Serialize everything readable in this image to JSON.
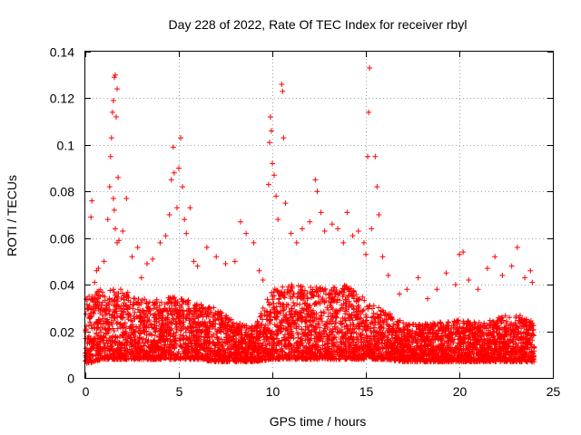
{
  "chart_data": {
    "type": "scatter",
    "title": "Day 228 of 2022, Rate Of TEC Index for receiver rbyl",
    "xlabel": "GPS time / hours",
    "ylabel": "ROTI / TECUs",
    "xlim": [
      0,
      25
    ],
    "ylim": [
      0,
      0.14
    ],
    "xticks": [
      0,
      5,
      10,
      15,
      20,
      25
    ],
    "yticks": [
      0,
      0.02,
      0.04,
      0.06,
      0.08,
      0.1,
      0.12,
      0.14
    ],
    "grid": true,
    "marker": "+",
    "series": [
      {
        "color": "#ff0000",
        "points": [
          [
            0.1,
            0.012
          ],
          [
            0.2,
            0.035
          ],
          [
            0.3,
            0.069
          ],
          [
            0.35,
            0.076
          ],
          [
            0.5,
            0.041
          ],
          [
            0.6,
            0.046
          ],
          [
            0.7,
            0.047
          ],
          [
            0.8,
            0.035
          ],
          [
            1.0,
            0.05
          ],
          [
            1.2,
            0.068
          ],
          [
            1.3,
            0.082
          ],
          [
            1.35,
            0.095
          ],
          [
            1.4,
            0.103
          ],
          [
            1.45,
            0.114
          ],
          [
            1.5,
            0.119
          ],
          [
            1.55,
            0.129
          ],
          [
            1.6,
            0.13
          ],
          [
            1.65,
            0.112
          ],
          [
            1.7,
            0.124
          ],
          [
            1.75,
            0.086
          ],
          [
            1.5,
            0.077
          ],
          [
            1.55,
            0.072
          ],
          [
            1.6,
            0.064
          ],
          [
            1.7,
            0.058
          ],
          [
            1.8,
            0.059
          ],
          [
            2.0,
            0.063
          ],
          [
            2.2,
            0.077
          ],
          [
            2.5,
            0.052
          ],
          [
            2.8,
            0.056
          ],
          [
            3.0,
            0.043
          ],
          [
            3.3,
            0.049
          ],
          [
            3.6,
            0.051
          ],
          [
            4.0,
            0.058
          ],
          [
            4.3,
            0.061
          ],
          [
            4.5,
            0.07
          ],
          [
            4.6,
            0.085
          ],
          [
            4.7,
            0.099
          ],
          [
            4.75,
            0.088
          ],
          [
            4.9,
            0.073
          ],
          [
            5.0,
            0.09
          ],
          [
            5.1,
            0.103
          ],
          [
            5.2,
            0.082
          ],
          [
            5.3,
            0.068
          ],
          [
            5.4,
            0.062
          ],
          [
            5.6,
            0.073
          ],
          [
            5.8,
            0.05
          ],
          [
            6.0,
            0.048
          ],
          [
            6.5,
            0.056
          ],
          [
            7.0,
            0.052
          ],
          [
            7.5,
            0.049
          ],
          [
            8.0,
            0.05
          ],
          [
            8.3,
            0.067
          ],
          [
            8.6,
            0.062
          ],
          [
            9.0,
            0.058
          ],
          [
            9.3,
            0.046
          ],
          [
            9.5,
            0.042
          ],
          [
            9.8,
            0.083
          ],
          [
            9.85,
            0.101
          ],
          [
            9.9,
            0.112
          ],
          [
            9.95,
            0.106
          ],
          [
            10.0,
            0.092
          ],
          [
            10.1,
            0.087
          ],
          [
            10.2,
            0.078
          ],
          [
            10.3,
            0.068
          ],
          [
            10.5,
            0.126
          ],
          [
            10.55,
            0.123
          ],
          [
            10.6,
            0.103
          ],
          [
            10.7,
            0.075
          ],
          [
            11.0,
            0.062
          ],
          [
            11.3,
            0.058
          ],
          [
            11.6,
            0.064
          ],
          [
            12.0,
            0.067
          ],
          [
            12.3,
            0.085
          ],
          [
            12.4,
            0.08
          ],
          [
            12.6,
            0.071
          ],
          [
            12.8,
            0.063
          ],
          [
            13.2,
            0.066
          ],
          [
            13.5,
            0.064
          ],
          [
            13.8,
            0.058
          ],
          [
            14.0,
            0.071
          ],
          [
            14.3,
            0.061
          ],
          [
            14.6,
            0.063
          ],
          [
            14.9,
            0.058
          ],
          [
            15.0,
            0.053
          ],
          [
            15.1,
            0.095
          ],
          [
            15.15,
            0.114
          ],
          [
            15.2,
            0.133
          ],
          [
            15.3,
            0.064
          ],
          [
            15.5,
            0.095
          ],
          [
            15.6,
            0.082
          ],
          [
            15.7,
            0.07
          ],
          [
            15.9,
            0.052
          ],
          [
            16.2,
            0.044
          ],
          [
            16.8,
            0.036
          ],
          [
            17.2,
            0.038
          ],
          [
            17.8,
            0.043
          ],
          [
            18.3,
            0.034
          ],
          [
            18.8,
            0.038
          ],
          [
            19.3,
            0.045
          ],
          [
            19.8,
            0.04
          ],
          [
            20.0,
            0.053
          ],
          [
            20.2,
            0.054
          ],
          [
            20.5,
            0.042
          ],
          [
            21.0,
            0.038
          ],
          [
            21.5,
            0.047
          ],
          [
            21.9,
            0.052
          ],
          [
            22.3,
            0.044
          ],
          [
            22.8,
            0.048
          ],
          [
            23.1,
            0.056
          ],
          [
            23.5,
            0.043
          ],
          [
            23.8,
            0.046
          ],
          [
            23.9,
            0.041
          ]
        ],
        "envelope": [
          [
            0,
            0.01,
            0.03
          ],
          [
            1,
            0.012,
            0.035
          ],
          [
            2,
            0.012,
            0.034
          ],
          [
            3,
            0.012,
            0.03
          ],
          [
            4,
            0.012,
            0.03
          ],
          [
            5,
            0.012,
            0.031
          ],
          [
            6,
            0.012,
            0.028
          ],
          [
            7,
            0.011,
            0.026
          ],
          [
            8,
            0.011,
            0.02
          ],
          [
            9,
            0.011,
            0.018
          ],
          [
            10,
            0.012,
            0.034
          ],
          [
            11,
            0.012,
            0.036
          ],
          [
            12,
            0.012,
            0.035
          ],
          [
            13,
            0.012,
            0.035
          ],
          [
            14,
            0.012,
            0.036
          ],
          [
            15,
            0.012,
            0.03
          ],
          [
            16,
            0.012,
            0.025
          ],
          [
            17,
            0.011,
            0.02
          ],
          [
            18,
            0.011,
            0.019
          ],
          [
            19,
            0.011,
            0.02
          ],
          [
            20,
            0.011,
            0.021
          ],
          [
            21,
            0.011,
            0.02
          ],
          [
            22,
            0.011,
            0.022
          ],
          [
            23,
            0.011,
            0.024
          ],
          [
            24,
            0.011,
            0.02
          ]
        ]
      }
    ]
  }
}
